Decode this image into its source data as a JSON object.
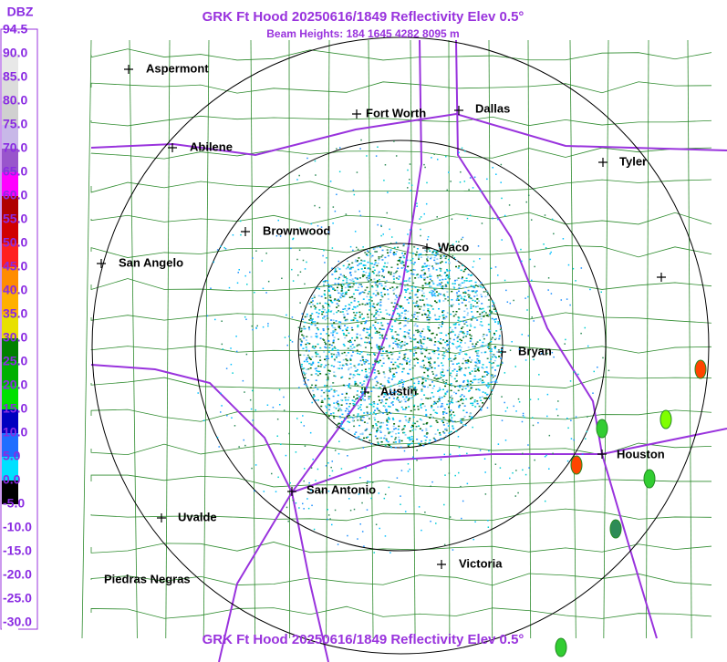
{
  "header": {
    "title": "GRK Ft Hood 20250616/1849 Reflectivity Elev 0.5°",
    "subtitle": "Beam Heights: 184 1645 4282 8095 m"
  },
  "footer": {
    "title": "GRK Ft Hood 20250616/1849 Reflectivity Elev 0.5°"
  },
  "legend": {
    "unit": "DBZ",
    "labels": [
      "94.5",
      "90.0",
      "85.0",
      "80.0",
      "75.0",
      "70.0",
      "65.0",
      "60.0",
      "55.0",
      "50.0",
      "45.0",
      "40.0",
      "35.0",
      "30.0",
      "25.0",
      "20.0",
      "15.0",
      "10.0",
      "5.0",
      "0.0",
      "-5.0",
      "-10.0",
      "-15.0",
      "-20.0",
      "-25.0",
      "-30.0"
    ]
  },
  "cities": [
    "Aspermont",
    "Abilene",
    "Fort Worth",
    "Dallas",
    "Tyler",
    "Brownwood",
    "San Angelo",
    "Waco",
    "Bryan",
    "Austin",
    "Houston",
    "San Antonio",
    "Uvalde",
    "Victoria",
    "Piedras Negras"
  ]
}
